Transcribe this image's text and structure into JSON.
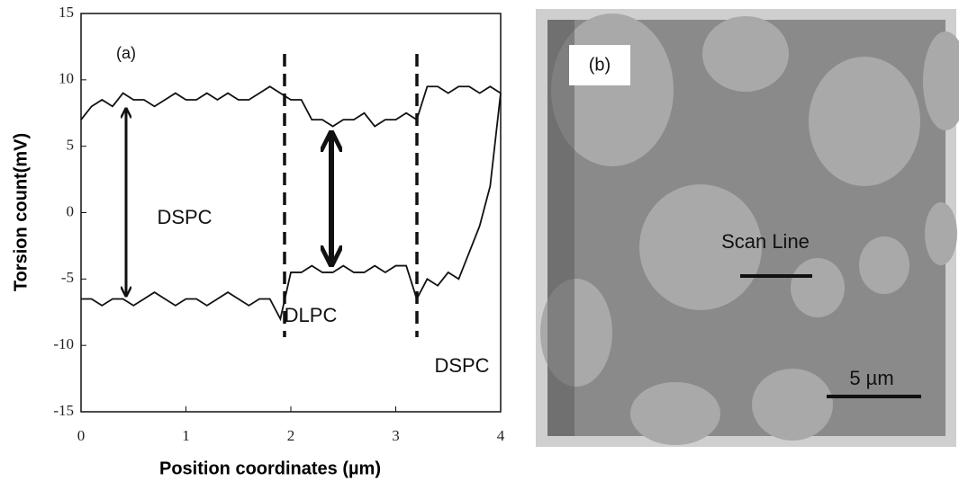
{
  "chart_data": {
    "type": "line",
    "xlabel": "Position coordinates (µm)",
    "ylabel": "Torsion count(mV)",
    "annotations": [
      "(a)",
      "DSPC",
      "DLPC",
      "DSPC"
    ],
    "x": [
      0,
      0.1,
      0.2,
      0.3,
      0.4,
      0.5,
      0.6,
      0.7,
      0.8,
      0.9,
      1,
      1.1,
      1.2,
      1.3,
      1.4,
      1.5,
      1.6,
      1.7,
      1.8,
      1.9,
      2,
      2.1,
      2.2,
      2.3,
      2.4,
      2.5,
      2.6,
      2.7,
      2.8,
      2.9,
      3,
      3.1,
      3.2,
      3.3,
      3.4,
      3.5,
      3.6,
      3.7,
      3.8,
      3.9,
      4
    ],
    "series": [
      {
        "color": "#111111",
        "values": [
          7,
          8,
          8.5,
          8,
          9,
          8.5,
          8.5,
          8,
          8.5,
          9,
          8.5,
          8.5,
          9,
          8.5,
          9,
          8.5,
          8.5,
          9,
          9.5,
          9,
          8.5,
          8.5,
          7,
          7,
          6.5,
          7,
          7,
          7.5,
          6.5,
          7,
          7,
          7.5,
          7,
          9.5,
          9.5,
          9,
          9.5,
          9.5,
          9,
          9.5,
          9
        ]
      },
      {
        "color": "#111111",
        "values": [
          -6.5,
          -6.5,
          -7,
          -6.5,
          -6.5,
          -7,
          -6.5,
          -6,
          -6.5,
          -7,
          -6.5,
          -6.5,
          -7,
          -6.5,
          -6,
          -6.5,
          -7,
          -6.5,
          -6.5,
          -8,
          -4.5,
          -4.5,
          -4,
          -4.5,
          -4.5,
          -4,
          -4.5,
          -4.5,
          -4,
          -4.5,
          -4,
          -4,
          -6.5,
          -5,
          -5.5,
          -4.5,
          -5,
          -3,
          -1,
          2,
          9
        ]
      }
    ],
    "xlim": [
      0,
      4
    ],
    "xticks": [
      0,
      1,
      2,
      3,
      4
    ],
    "ylim": [
      -15,
      15
    ],
    "yticks": [
      -15,
      -10,
      -5,
      0,
      5,
      10,
      15
    ]
  },
  "image_panel": {
    "label": "(b)",
    "annotations": [
      "Scan Line",
      "5 µm"
    ]
  }
}
